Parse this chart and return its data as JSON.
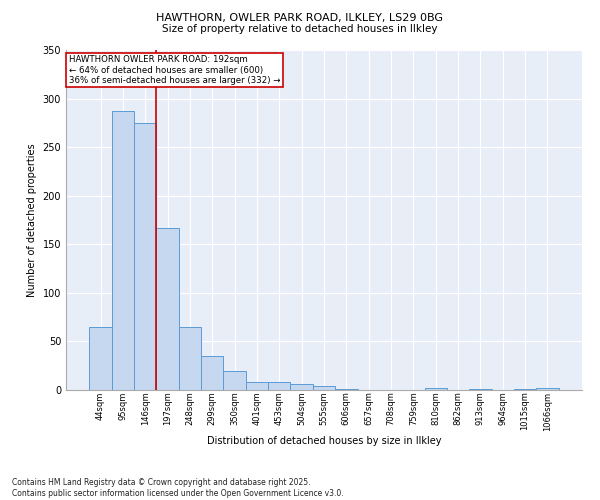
{
  "title1": "HAWTHORN, OWLER PARK ROAD, ILKLEY, LS29 0BG",
  "title2": "Size of property relative to detached houses in Ilkley",
  "xlabel": "Distribution of detached houses by size in Ilkley",
  "ylabel": "Number of detached properties",
  "bar_color": "#c5d8f0",
  "bar_edge_color": "#5b9bd5",
  "bg_color": "#e8eef8",
  "grid_color": "#ffffff",
  "categories": [
    "44sqm",
    "95sqm",
    "146sqm",
    "197sqm",
    "248sqm",
    "299sqm",
    "350sqm",
    "401sqm",
    "453sqm",
    "504sqm",
    "555sqm",
    "606sqm",
    "657sqm",
    "708sqm",
    "759sqm",
    "810sqm",
    "862sqm",
    "913sqm",
    "964sqm",
    "1015sqm",
    "1066sqm"
  ],
  "values": [
    65,
    287,
    275,
    167,
    65,
    35,
    20,
    8,
    8,
    6,
    4,
    1,
    0,
    0,
    0,
    2,
    0,
    1,
    0,
    1,
    2
  ],
  "vline_x": 2.5,
  "vline_color": "#cc0000",
  "annotation_text": "HAWTHORN OWLER PARK ROAD: 192sqm\n← 64% of detached houses are smaller (600)\n36% of semi-detached houses are larger (332) →",
  "annotation_box_color": "white",
  "annotation_box_edge": "#cc0000",
  "footnote": "Contains HM Land Registry data © Crown copyright and database right 2025.\nContains public sector information licensed under the Open Government Licence v3.0.",
  "ylim": [
    0,
    350
  ],
  "yticks": [
    0,
    50,
    100,
    150,
    200,
    250,
    300,
    350
  ],
  "figsize": [
    6.0,
    5.0
  ],
  "dpi": 100
}
